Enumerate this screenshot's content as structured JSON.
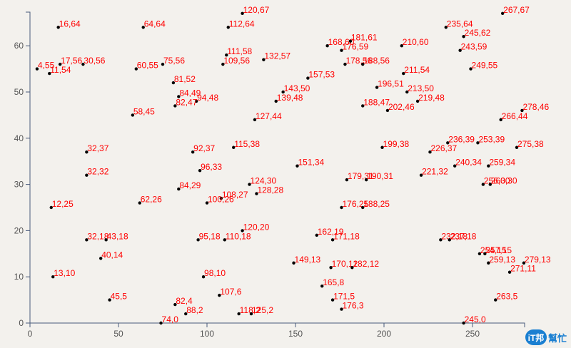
{
  "chart_data": {
    "type": "scatter",
    "title": "",
    "xlabel": "",
    "ylabel": "",
    "xlim": [
      0,
      280
    ],
    "ylim": [
      0,
      67
    ],
    "x_ticks": [
      "0",
      "50",
      "100",
      "150",
      "200",
      "250"
    ],
    "x_tick_values": [
      0,
      50,
      100,
      150,
      200,
      250
    ],
    "y_ticks": [
      "0",
      "10",
      "20",
      "30",
      "40",
      "50",
      "60"
    ],
    "y_tick_values": [
      0,
      10,
      20,
      30,
      40,
      50,
      60
    ],
    "point_color": "#000000",
    "label_color": "#ff0000",
    "points": [
      [
        16,
        64
      ],
      [
        64,
        64
      ],
      [
        120,
        67
      ],
      [
        112,
        64
      ],
      [
        235,
        64
      ],
      [
        267,
        67
      ],
      [
        245,
        62
      ],
      [
        168,
        60
      ],
      [
        181,
        61
      ],
      [
        176,
        59
      ],
      [
        210,
        60
      ],
      [
        243,
        59
      ],
      [
        4,
        55
      ],
      [
        17,
        56
      ],
      [
        30,
        56
      ],
      [
        11,
        54
      ],
      [
        60,
        55
      ],
      [
        75,
        56
      ],
      [
        111,
        58
      ],
      [
        109,
        56
      ],
      [
        132,
        57
      ],
      [
        178,
        56
      ],
      [
        188,
        56
      ],
      [
        249,
        55
      ],
      [
        157,
        53
      ],
      [
        211,
        54
      ],
      [
        81,
        52
      ],
      [
        143,
        50
      ],
      [
        196,
        51
      ],
      [
        213,
        50
      ],
      [
        84,
        49
      ],
      [
        94,
        48
      ],
      [
        82,
        47
      ],
      [
        139,
        48
      ],
      [
        188,
        47
      ],
      [
        219,
        48
      ],
      [
        202,
        46
      ],
      [
        278,
        46
      ],
      [
        58,
        45
      ],
      [
        127,
        44
      ],
      [
        266,
        44
      ],
      [
        236,
        39
      ],
      [
        253,
        39
      ],
      [
        199,
        38
      ],
      [
        226,
        37
      ],
      [
        275,
        38
      ],
      [
        32,
        37
      ],
      [
        92,
        37
      ],
      [
        115,
        38
      ],
      [
        32,
        32
      ],
      [
        96,
        33
      ],
      [
        151,
        34
      ],
      [
        240,
        34
      ],
      [
        259,
        34
      ],
      [
        179,
        31
      ],
      [
        190,
        31
      ],
      [
        221,
        32
      ],
      [
        256,
        30
      ],
      [
        260,
        30
      ],
      [
        124,
        30
      ],
      [
        84,
        29
      ],
      [
        128,
        28
      ],
      [
        108,
        27
      ],
      [
        100,
        26
      ],
      [
        62,
        26
      ],
      [
        12,
        25
      ],
      [
        176,
        25
      ],
      [
        188,
        25
      ],
      [
        120,
        20
      ],
      [
        162,
        19
      ],
      [
        171,
        18
      ],
      [
        232,
        18
      ],
      [
        237,
        18
      ],
      [
        32,
        18
      ],
      [
        43,
        18
      ],
      [
        95,
        18
      ],
      [
        110,
        18
      ],
      [
        254,
        15
      ],
      [
        257,
        15
      ],
      [
        259,
        13
      ],
      [
        279,
        13
      ],
      [
        271,
        11
      ],
      [
        40,
        14
      ],
      [
        149,
        13
      ],
      [
        170,
        12
      ],
      [
        182,
        12
      ],
      [
        13,
        10
      ],
      [
        98,
        10
      ],
      [
        165,
        8
      ],
      [
        107,
        6
      ],
      [
        171,
        5
      ],
      [
        263,
        5
      ],
      [
        45,
        5
      ],
      [
        82,
        4
      ],
      [
        176,
        3
      ],
      [
        88,
        2
      ],
      [
        118,
        2
      ],
      [
        125,
        2
      ],
      [
        74,
        0
      ],
      [
        245,
        0
      ]
    ]
  },
  "watermark": {
    "badge": "iT邦",
    "text": "幫忙"
  }
}
